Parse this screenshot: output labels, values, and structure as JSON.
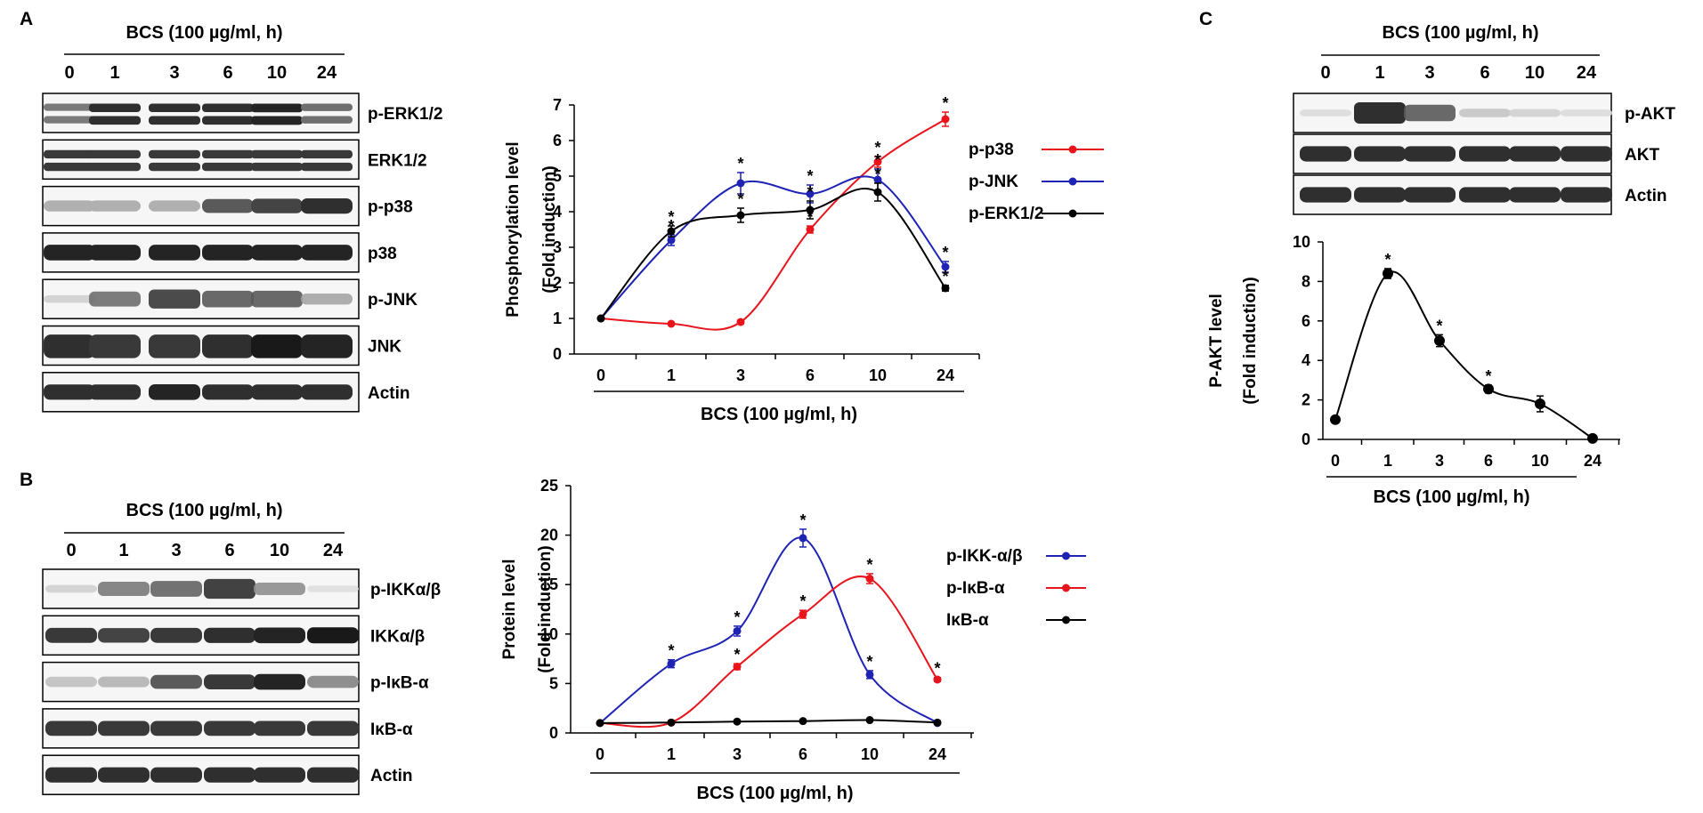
{
  "panels": {
    "A": "A",
    "B": "B",
    "C": "C"
  },
  "blot_header": "BCS (100 µg/ml, h)",
  "lanes": [
    "0",
    "1",
    "3",
    "6",
    "10",
    "24"
  ],
  "blots": {
    "A": [
      "p-ERK1/2",
      "ERK1/2",
      "p-p38",
      "p38",
      "p-JNK",
      "JNK",
      "Actin"
    ],
    "B": [
      "p-IKKα/β",
      "IKKα/β",
      "p-IκB-α",
      "IκB-α",
      "Actin"
    ],
    "C": [
      "p-AKT",
      "AKT",
      "Actin"
    ]
  },
  "blot_intensity": {
    "A": [
      [
        0.55,
        0.9,
        0.9,
        0.9,
        0.95,
        0.6
      ],
      [
        0.85,
        0.85,
        0.85,
        0.85,
        0.85,
        0.85
      ],
      [
        0.3,
        0.3,
        0.3,
        0.7,
        0.8,
        0.9
      ],
      [
        0.95,
        0.95,
        0.95,
        0.95,
        0.95,
        0.95
      ],
      [
        0.15,
        0.6,
        0.85,
        0.7,
        0.7,
        0.35
      ],
      [
        0.9,
        0.85,
        0.85,
        0.9,
        1.0,
        0.95
      ],
      [
        0.9,
        0.9,
        0.95,
        0.9,
        0.9,
        0.9
      ]
    ],
    "B": [
      [
        0.15,
        0.55,
        0.65,
        0.9,
        0.45,
        0.08
      ],
      [
        0.85,
        0.8,
        0.85,
        0.9,
        0.95,
        1.0
      ],
      [
        0.2,
        0.25,
        0.7,
        0.85,
        0.95,
        0.45
      ],
      [
        0.85,
        0.85,
        0.85,
        0.85,
        0.85,
        0.85
      ],
      [
        0.9,
        0.9,
        0.9,
        0.9,
        0.9,
        0.9
      ]
    ],
    "C": [
      [
        0.1,
        1.0,
        0.7,
        0.2,
        0.15,
        0.1
      ],
      [
        0.9,
        0.9,
        0.9,
        0.9,
        0.9,
        0.9
      ],
      [
        0.9,
        0.9,
        0.9,
        0.9,
        0.9,
        0.9
      ]
    ]
  },
  "chart_data": [
    {
      "type": "line",
      "panel": "A",
      "categories": [
        "0",
        "1",
        "3",
        "6",
        "10",
        "24"
      ],
      "xlabel": "BCS (100 µg/ml, h)",
      "ylabel": [
        "Phosphorylation level",
        "(Fold induction)"
      ],
      "ylim": [
        0,
        7
      ],
      "yticks": [
        0,
        1,
        2,
        3,
        4,
        5,
        6,
        7
      ],
      "grid": false,
      "legend": "top-right",
      "series": [
        {
          "name": "p-p38",
          "color": "#e8141b",
          "values": [
            1.0,
            0.85,
            0.9,
            3.5,
            5.4,
            6.6
          ],
          "errors": [
            0.03,
            0.03,
            0.05,
            0.1,
            0.15,
            0.2
          ],
          "stars": [
            "",
            "",
            "",
            "*",
            "*",
            "*"
          ]
        },
        {
          "name": "p-JNK",
          "color": "#1e23b4",
          "values": [
            1.0,
            3.2,
            4.8,
            4.5,
            4.9,
            2.45
          ],
          "errors": [
            0.03,
            0.15,
            0.3,
            0.25,
            0.3,
            0.15
          ],
          "stars": [
            "",
            "*",
            "*",
            "*",
            "*",
            "*"
          ]
        },
        {
          "name": "p-ERK1/2",
          "color": "#000000",
          "values": [
            1.0,
            3.45,
            3.9,
            4.05,
            4.55,
            1.85
          ],
          "errors": [
            0.03,
            0.15,
            0.2,
            0.25,
            0.25,
            0.08
          ],
          "stars": [
            "",
            "*",
            "*",
            "*",
            "*",
            "*"
          ]
        }
      ]
    },
    {
      "type": "line",
      "panel": "B",
      "categories": [
        "0",
        "1",
        "3",
        "6",
        "10",
        "24"
      ],
      "xlabel": "BCS (100 µg/ml, h)",
      "ylabel": [
        "Protein level",
        "(Fold induction)"
      ],
      "ylim": [
        0,
        25
      ],
      "yticks": [
        0,
        5,
        10,
        15,
        20,
        25
      ],
      "grid": false,
      "legend": "right",
      "series": [
        {
          "name": "p-IKK-α/β",
          "color": "#1e23b4",
          "values": [
            1.0,
            7.0,
            10.3,
            19.7,
            5.9,
            1.0
          ],
          "errors": [
            0.1,
            0.4,
            0.5,
            0.9,
            0.4,
            0.1
          ],
          "stars": [
            "",
            "*",
            "*",
            "*",
            "*",
            ""
          ]
        },
        {
          "name": "p-IκB-α",
          "color": "#e8141b",
          "values": [
            1.0,
            1.05,
            6.7,
            12.0,
            15.6,
            5.4
          ],
          "errors": [
            0.1,
            0.1,
            0.3,
            0.4,
            0.5,
            0.2
          ],
          "stars": [
            "",
            "",
            "*",
            "*",
            "*",
            "*"
          ]
        },
        {
          "name": "IκB-α",
          "color": "#000000",
          "values": [
            1.0,
            1.05,
            1.15,
            1.2,
            1.3,
            1.05
          ],
          "errors": [
            0.05,
            0.05,
            0.05,
            0.05,
            0.05,
            0.05
          ],
          "stars": [
            "",
            "",
            "",
            "",
            "",
            ""
          ]
        }
      ]
    },
    {
      "type": "line",
      "panel": "C",
      "categories": [
        "0",
        "1",
        "3",
        "6",
        "10",
        "24"
      ],
      "xlabel": "BCS (100 µg/ml, h)",
      "ylabel": [
        "P-AKT level",
        "(Fold induction)"
      ],
      "ylim": [
        0,
        10
      ],
      "yticks": [
        0,
        2,
        4,
        6,
        8,
        10
      ],
      "grid": false,
      "legend": "none",
      "series": [
        {
          "name": "p-AKT",
          "color": "#000000",
          "values": [
            1.0,
            8.4,
            5.0,
            2.55,
            1.8,
            0.05
          ],
          "errors": [
            0.05,
            0.25,
            0.3,
            0.2,
            0.4,
            0.02
          ],
          "stars": [
            "",
            "*",
            "*",
            "*",
            "",
            ""
          ]
        }
      ]
    }
  ]
}
